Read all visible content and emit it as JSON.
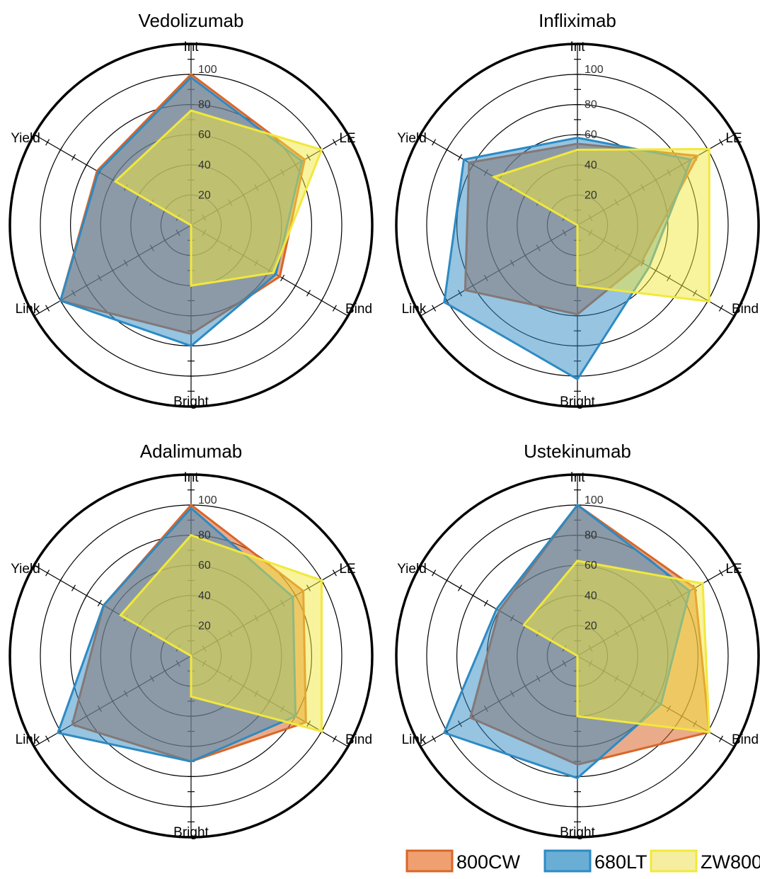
{
  "chart_data": [
    {
      "type": "radar",
      "title": "Vedolizumab",
      "axes": [
        "Int",
        "LE",
        "Bind",
        "Bright",
        "Link",
        "Yield"
      ],
      "rlim": [
        0,
        100
      ],
      "ticks": [
        "20",
        "40",
        "60",
        "80",
        "100"
      ],
      "series": [
        {
          "name": "800CW",
          "values": [
            100,
            87,
            68,
            72,
            100,
            72
          ]
        },
        {
          "name": "680LT",
          "values": [
            98,
            85,
            65,
            80,
            100,
            71
          ]
        },
        {
          "name": "ZW800",
          "values": [
            76,
            100,
            63,
            40,
            0,
            58
          ]
        }
      ]
    },
    {
      "type": "radar",
      "title": "Infliximab",
      "axes": [
        "Int",
        "LE",
        "Bind",
        "Bright",
        "Link",
        "Yield"
      ],
      "rlim": [
        0,
        100
      ],
      "ticks": [
        "20",
        "40",
        "60",
        "80",
        "100"
      ],
      "series": [
        {
          "name": "800CW",
          "values": [
            54,
            92,
            49,
            59,
            86,
            83
          ]
        },
        {
          "name": "680LT",
          "values": [
            58,
            87,
            55,
            102,
            102,
            87
          ]
        },
        {
          "name": "ZW800",
          "values": [
            50,
            101,
            101,
            40,
            0,
            64
          ]
        }
      ]
    },
    {
      "type": "radar",
      "title": "Adalimumab",
      "axes": [
        "Int",
        "LE",
        "Bind",
        "Bright",
        "Link",
        "Yield"
      ],
      "rlim": [
        0,
        100
      ],
      "ticks": [
        "20",
        "40",
        "60",
        "80",
        "100"
      ],
      "series": [
        {
          "name": "800CW",
          "values": [
            100,
            86,
            88,
            70,
            91,
            67
          ]
        },
        {
          "name": "680LT",
          "values": [
            98,
            78,
            80,
            70,
            102,
            67
          ]
        },
        {
          "name": "ZW800",
          "values": [
            80,
            100,
            100,
            27,
            0,
            54
          ]
        }
      ]
    },
    {
      "type": "radar",
      "title": "Ustekinumab",
      "axes": [
        "Int",
        "LE",
        "Bind",
        "Bright",
        "Link",
        "Yield"
      ],
      "rlim": [
        0,
        100
      ],
      "ticks": [
        "20",
        "40",
        "60",
        "80",
        "100"
      ],
      "series": [
        {
          "name": "800CW",
          "values": [
            100,
            90,
            101,
            72,
            82,
            60
          ]
        },
        {
          "name": "680LT",
          "values": [
            100,
            86,
            64,
            81,
            102,
            62
          ]
        },
        {
          "name": "ZW800",
          "values": [
            63,
            96,
            101,
            40,
            0,
            41
          ]
        }
      ]
    }
  ],
  "legend": [
    {
      "name": "800CW",
      "stroke": "#d9662a",
      "fill": "#f0a070"
    },
    {
      "name": "680LT",
      "stroke": "#2d8ac3",
      "fill": "#6aaed6"
    },
    {
      "name": "ZW800",
      "stroke": "#f2e83c",
      "fill": "#f5eea0"
    }
  ],
  "colors": {
    "800CW": {
      "stroke": "#d9662a",
      "fill": "#d9662a",
      "opacity": 0.55
    },
    "680LT": {
      "stroke": "#2d8ac3",
      "fill": "#2d8ac3",
      "opacity": 0.5
    },
    "ZW800": {
      "stroke": "#f2e83c",
      "fill": "#f2e83c",
      "opacity": 0.5
    }
  }
}
